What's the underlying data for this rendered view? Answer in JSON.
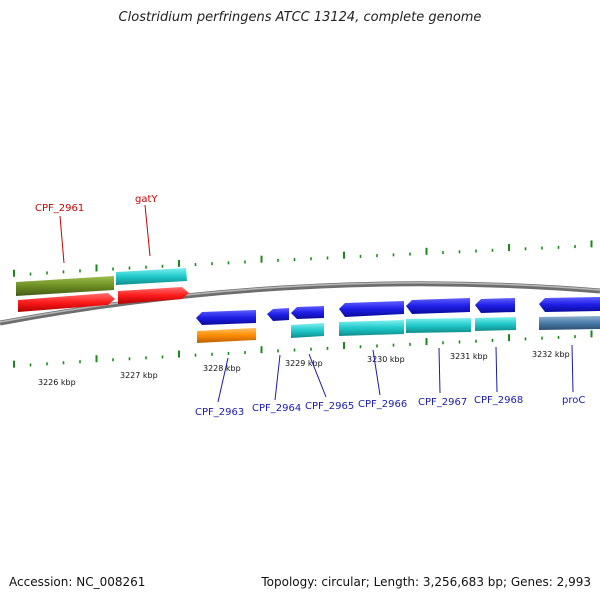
{
  "title": "Clostridium perfringens ATCC 13124, complete genome",
  "footer": {
    "accession": "Accession: NC_008261",
    "stats": "Topology: circular; Length: 3,256,683 bp; Genes: 2,993"
  },
  "ticks": [
    "3226 kbp",
    "3227 kbp",
    "3228 kbp",
    "3229 kbp",
    "3230 kbp",
    "3231 kbp",
    "3232 kbp"
  ],
  "gene_labels": [
    "CPF_2961",
    "gatY",
    "CPF_2963",
    "CPF_2964",
    "CPF_2965",
    "CPF_2966",
    "CPF_2967",
    "CPF_2968",
    "proC"
  ],
  "colors": {
    "backbone": "#808080",
    "forward_gene": "#ff1a1a",
    "forward_cds": "#6b8e23",
    "reverse_gene": "#1e1ee6",
    "cds_cyan": "#1fc9c9",
    "orange": "#ff8c00",
    "steel": "#4a7aa8",
    "tick_green": "#1a8a1a",
    "label_red": "#cc0000",
    "label_blue": "#1a1ab4"
  }
}
